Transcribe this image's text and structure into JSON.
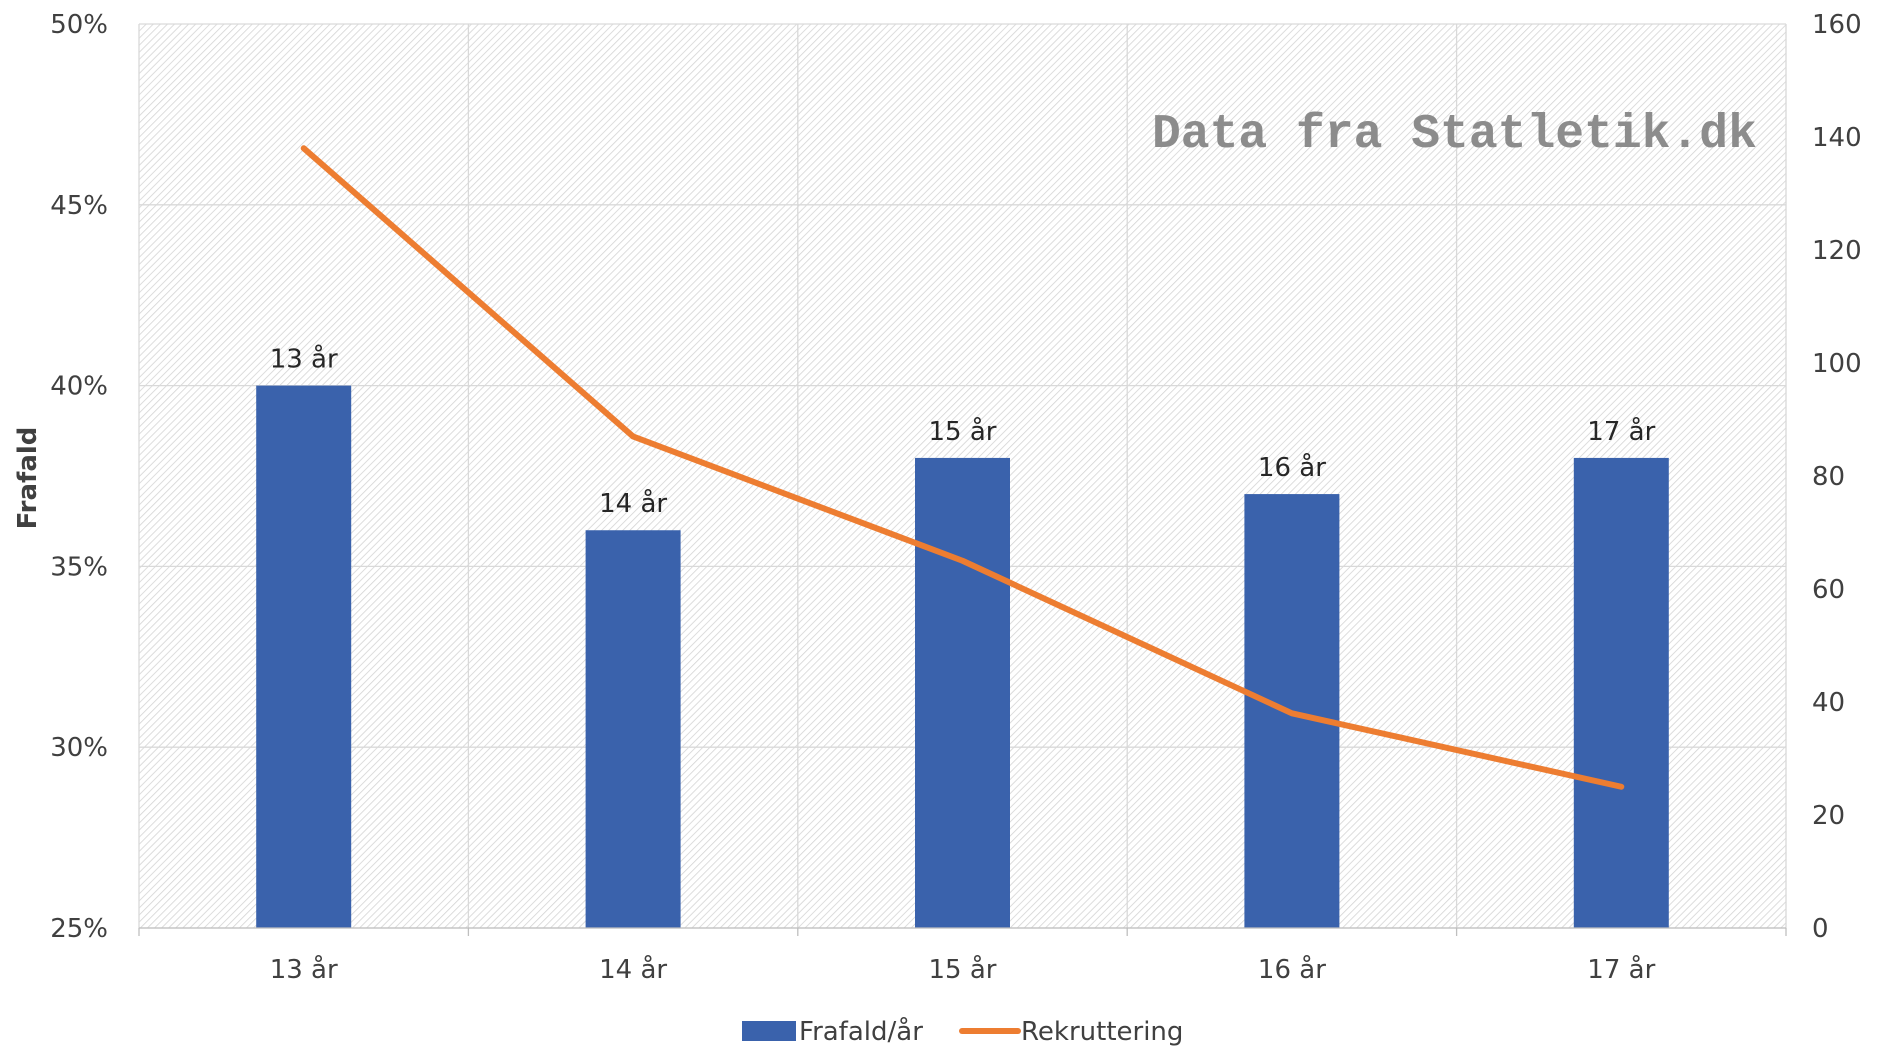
{
  "watermark": "Data fra Statletik.dk",
  "chart_data": {
    "type": "bar",
    "categories": [
      "13 år",
      "14 år",
      "15 år",
      "16 år",
      "17 år"
    ],
    "series": [
      {
        "name": "Frafald/år",
        "type": "bar",
        "axis": "left",
        "values": [
          40,
          36,
          38,
          37,
          38
        ],
        "data_labels": [
          "13 år",
          "14 år",
          "15 år",
          "16 år",
          "17 år"
        ],
        "color": "#3a62ac"
      },
      {
        "name": "Rekruttering",
        "type": "line",
        "axis": "right",
        "values": [
          138,
          87,
          65,
          38,
          25
        ],
        "color": "#ed7d31"
      }
    ],
    "y_left": {
      "label": "Frafald",
      "range": [
        25,
        50
      ],
      "ticks": [
        25,
        30,
        35,
        40,
        45,
        50
      ],
      "tick_labels": [
        "25%",
        "30%",
        "35%",
        "40%",
        "45%",
        "50%"
      ]
    },
    "y_right": {
      "range": [
        0,
        160
      ],
      "ticks": [
        0,
        20,
        40,
        60,
        80,
        100,
        120,
        140,
        160
      ],
      "tick_labels": [
        "0",
        "20",
        "40",
        "60",
        "80",
        "100",
        "120",
        "140",
        "160"
      ]
    },
    "grid": true,
    "legend": "bottom"
  }
}
